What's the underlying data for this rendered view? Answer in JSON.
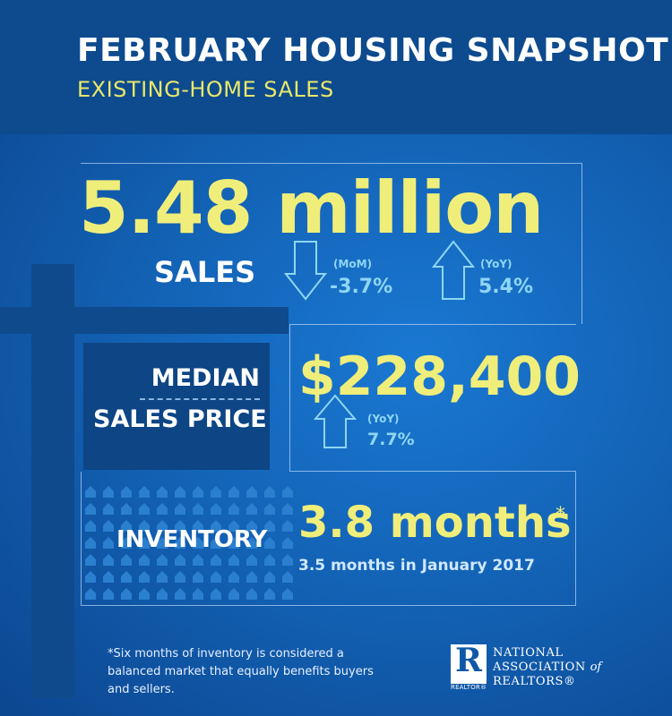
{
  "header": {
    "title": "FEBRUARY  HOUSING SNAPSHOT",
    "subtitle": "EXISTING-HOME SALES"
  },
  "sales": {
    "value": "5.48 million",
    "label": "SALES",
    "mom": {
      "label": "(MoM)",
      "value": "-3.7%",
      "direction": "down"
    },
    "yoy": {
      "label": "(YoY)",
      "value": "5.4%",
      "direction": "up"
    }
  },
  "median": {
    "label_line1": "MEDIAN",
    "label_line2": "SALES PRICE",
    "value": "$228,400",
    "yoy": {
      "label": "(YoY)",
      "value": "7.7%",
      "direction": "up"
    }
  },
  "inventory": {
    "label": "INVENTORY",
    "value": "3.8 months",
    "asterisk": "*",
    "comparison": "3.5 months in January 2017"
  },
  "footnote": "*Six months of inventory is considered a balanced market that equally benefits buyers and sellers.",
  "logo": {
    "mark": "R",
    "mark_caption": "REALTOR®",
    "line1": "NATIONAL",
    "line2": "ASSOCIATION",
    "line2_suffix": "of",
    "line3": "REALTORS®"
  },
  "colors": {
    "header_bg": "#0d4a8e",
    "accent_yellow": "#f0ee7a",
    "accent_cyan": "#8fd6f4"
  }
}
